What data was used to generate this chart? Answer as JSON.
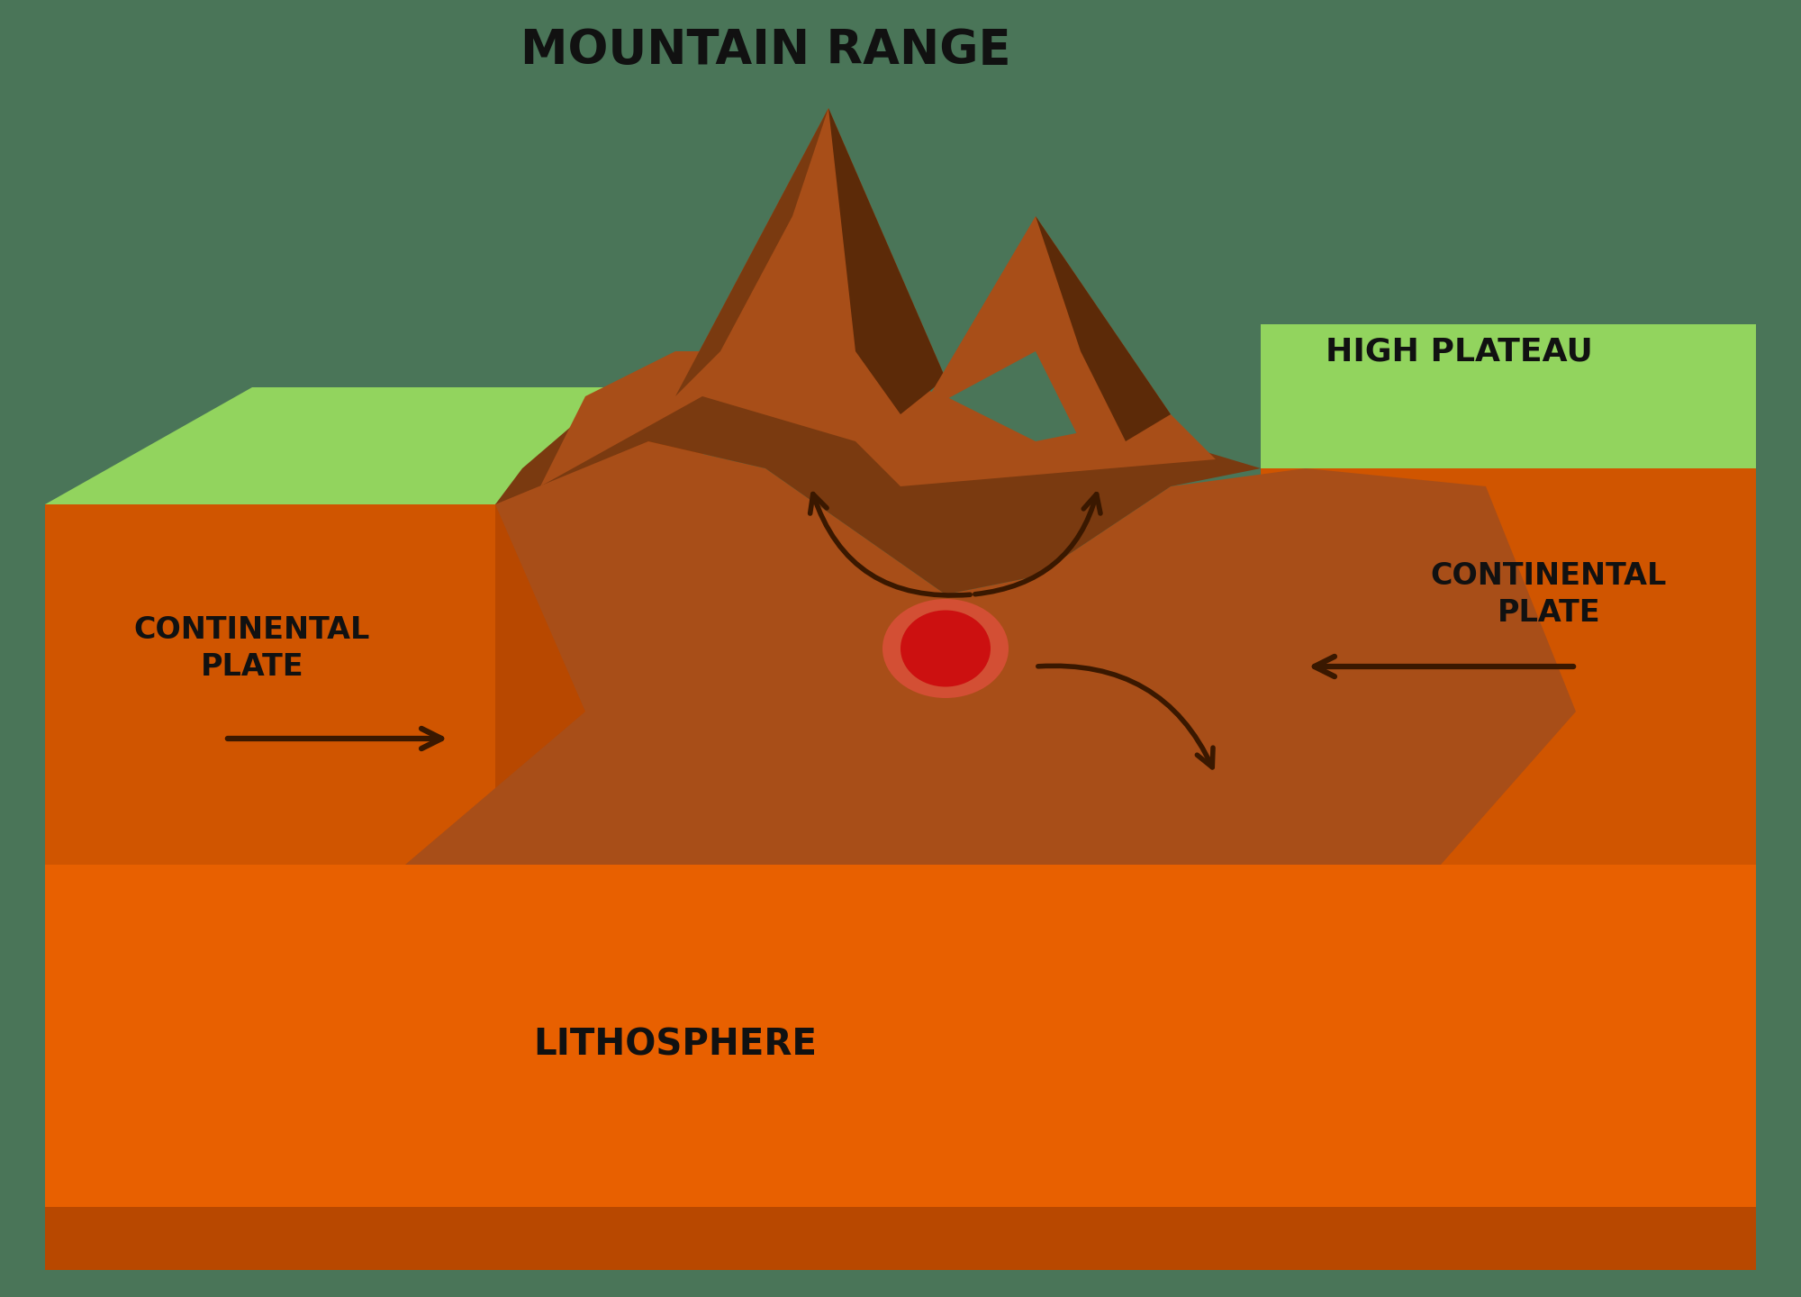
{
  "background_color": "#4a7558",
  "colors": {
    "green_top": "#92d45e",
    "brown_dark": "#5c2a08",
    "brown_mid": "#7a3a10",
    "brown_light": "#a84e18",
    "brown_base": "#8b3a10",
    "orange_litho": "#e86000",
    "orange_dark": "#b84800",
    "orange_side": "#d05500",
    "arrow_color": "#3a1800",
    "red_dot": "#cc1010",
    "red_dot_glow": "#ff5050"
  },
  "labels": {
    "mountain_range": "MOUNTAIN RANGE",
    "continental_left": "CONTINENTAL\nPLATE",
    "continental_right": "CONTINENTAL\nPLATE",
    "high_plateau": "HIGH PLATEAU",
    "lithosphere": "LITHOSPHERE"
  },
  "title_fontsize": 38,
  "label_fontsize": 24,
  "label_color": "#111111"
}
